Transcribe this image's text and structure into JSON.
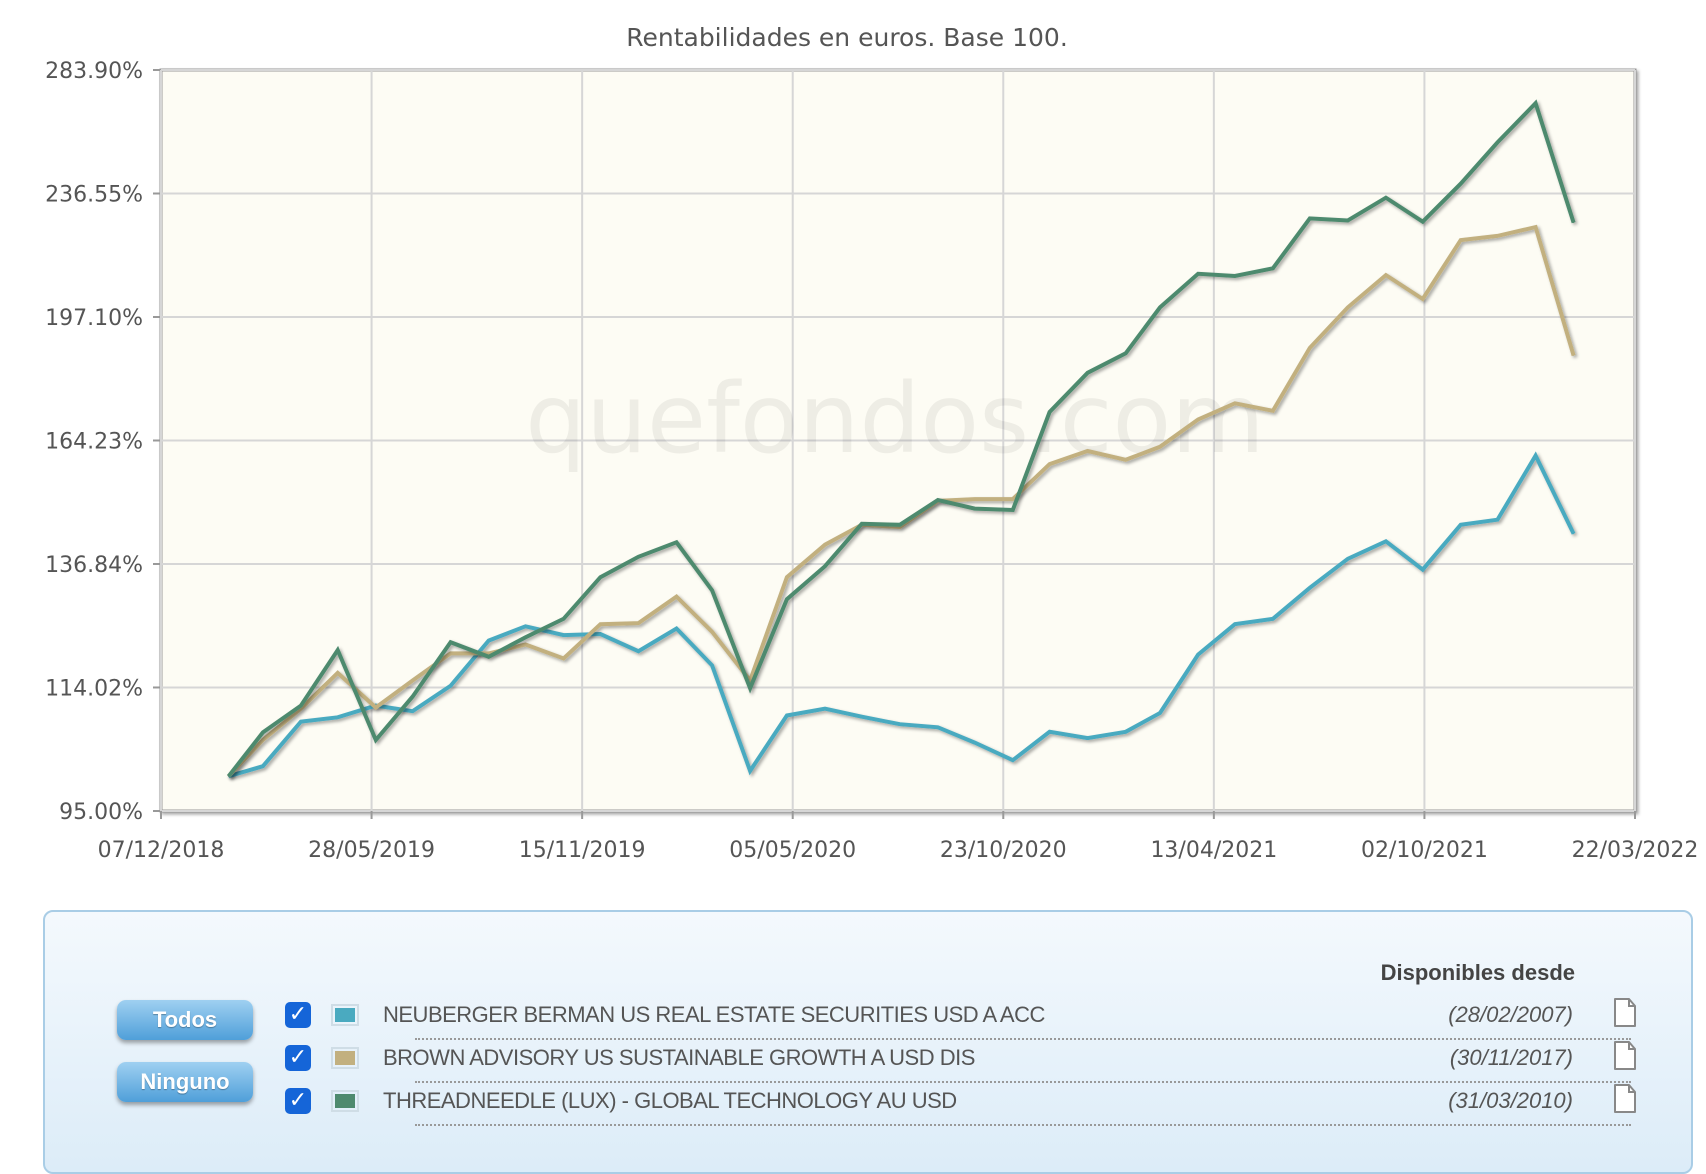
{
  "chart_data": {
    "type": "line",
    "title": "Rentabilidades en euros. Base 100.",
    "y_scale": "log",
    "ylim": [
      95.0,
      283.9
    ],
    "y_ticks": [
      "95.00%",
      "114.02%",
      "136.84%",
      "164.23%",
      "197.10%",
      "236.55%",
      "283.90%"
    ],
    "y_tick_values": [
      95.0,
      114.02,
      136.84,
      164.23,
      197.1,
      236.55,
      283.9
    ],
    "x_ticks": [
      "07/12/2018",
      "28/05/2019",
      "15/11/2019",
      "05/05/2020",
      "23/10/2020",
      "13/04/2021",
      "02/10/2021",
      "22/03/2022"
    ],
    "xlim": [
      "2018-12-07",
      "2022-03-22"
    ],
    "grid": true,
    "watermark": "quefondos.com",
    "x": [
      "2019-01-31",
      "2019-02-28",
      "2019-03-31",
      "2019-04-30",
      "2019-05-31",
      "2019-06-30",
      "2019-07-31",
      "2019-08-31",
      "2019-09-30",
      "2019-10-31",
      "2019-11-30",
      "2019-12-31",
      "2020-01-31",
      "2020-02-29",
      "2020-03-31",
      "2020-04-30",
      "2020-05-31",
      "2020-06-30",
      "2020-07-31",
      "2020-08-31",
      "2020-09-30",
      "2020-10-31",
      "2020-11-30",
      "2020-12-31",
      "2021-01-31",
      "2021-02-28",
      "2021-03-31",
      "2021-04-30",
      "2021-05-31",
      "2021-06-30",
      "2021-07-31",
      "2021-08-31",
      "2021-09-30",
      "2021-10-31",
      "2021-11-30",
      "2021-12-31",
      "2022-01-31"
    ],
    "series": [
      {
        "name": "NEUBERGER BERMAN US REAL ESTATE SECURITIES USD A ACC",
        "color": "#4aaac0",
        "values": [
          100,
          101.5,
          108.4,
          109.1,
          111.0,
          110.1,
          114.3,
          122.2,
          124.8,
          123.2,
          123.4,
          120.3,
          124.4,
          117.8,
          100.8,
          109.4,
          110.5,
          109.2,
          108.0,
          107.5,
          105.1,
          102.4,
          106.8,
          105.8,
          106.8,
          109.8,
          119.7,
          125.2,
          126.2,
          132.1,
          137.9,
          141.5,
          135.7,
          145.0,
          146.1,
          160.6,
          143.1
        ]
      },
      {
        "name": "BROWN ADVISORY US SUSTAINABLE GROWTH A USD DIS",
        "color": "#c2b07f",
        "values": [
          100,
          105.5,
          110.5,
          116.5,
          110.7,
          115.2,
          119.9,
          119.9,
          121.5,
          119.0,
          125.2,
          125.4,
          130.4,
          123.8,
          115.2,
          134.2,
          140.8,
          145.0,
          144.5,
          150.2,
          150.6,
          150.6,
          158.6,
          161.7,
          159.6,
          162.7,
          169.4,
          173.5,
          171.6,
          188.3,
          199.9,
          209.7,
          202.4,
          220.8,
          222.2,
          225.1,
          186.2
        ]
      },
      {
        "name": "THREADNEEDLE (LUX) - GLOBAL TECHNOLOGY AU USD",
        "color": "#4e8a6e",
        "values": [
          100,
          106.7,
          111.0,
          120.5,
          105.5,
          112.5,
          121.9,
          119.3,
          122.8,
          126.2,
          134.2,
          138.3,
          141.3,
          131.6,
          113.9,
          129.9,
          136.4,
          145.2,
          145.0,
          150.4,
          148.5,
          148.2,
          171.3,
          181.5,
          186.8,
          199.9,
          210.1,
          209.4,
          211.8,
          228.0,
          227.3,
          235.1,
          226.9,
          240.0,
          255.1,
          270.3,
          226.6
        ]
      }
    ]
  },
  "legend": {
    "all_button": "Todos",
    "none_button": "Ninguno",
    "header": "Disponibles desde",
    "rows": [
      {
        "name": "NEUBERGER BERMAN US REAL ESTATE SECURITIES USD A ACC",
        "since": "(28/02/2007)",
        "checked": true,
        "color": "#4aaac0"
      },
      {
        "name": "BROWN ADVISORY US SUSTAINABLE GROWTH A USD DIS",
        "since": "(30/11/2017)",
        "checked": true,
        "color": "#c2b07f"
      },
      {
        "name": "THREADNEEDLE (LUX) - GLOBAL TECHNOLOGY AU USD",
        "since": "(31/03/2010)",
        "checked": true,
        "color": "#4e8a6e"
      }
    ],
    "checkmark": "✓"
  }
}
